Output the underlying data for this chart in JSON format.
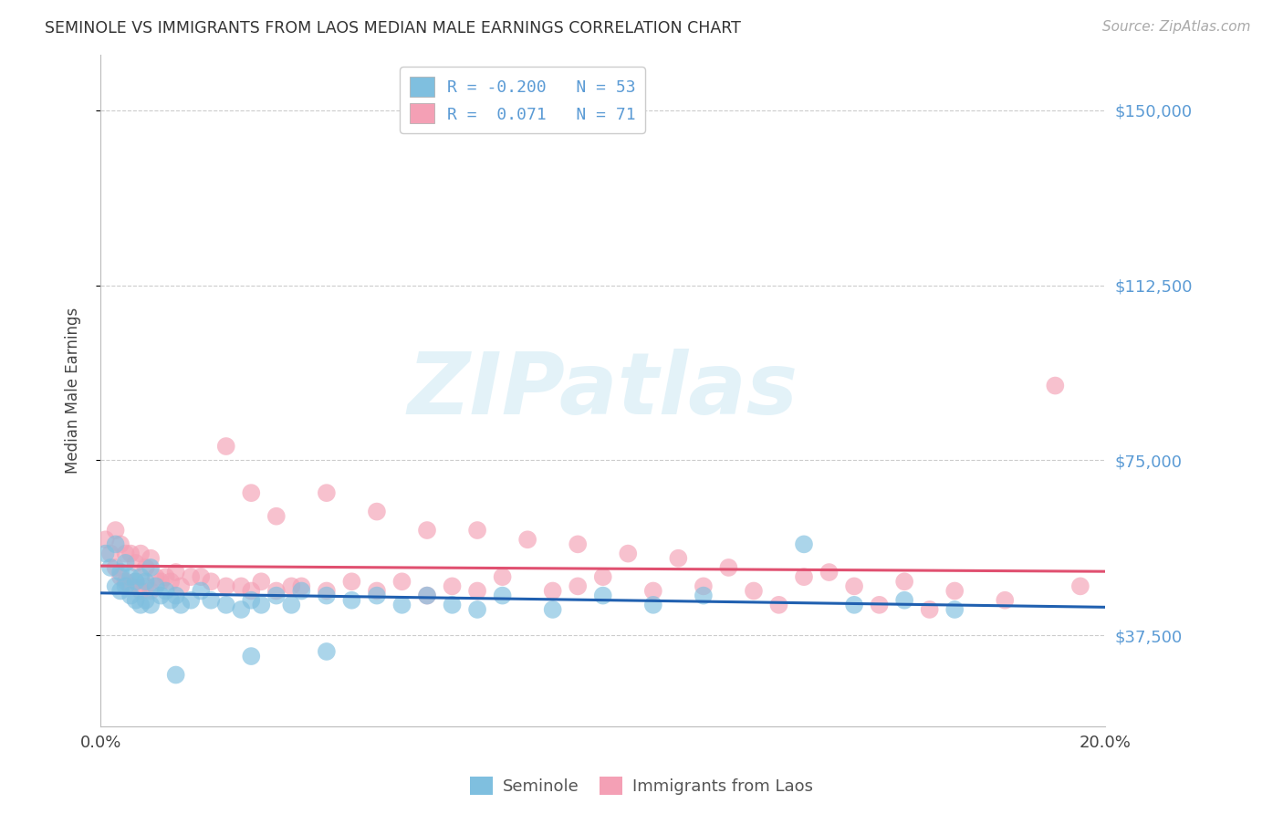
{
  "title": "SEMINOLE VS IMMIGRANTS FROM LAOS MEDIAN MALE EARNINGS CORRELATION CHART",
  "source": "Source: ZipAtlas.com",
  "ylabel": "Median Male Earnings",
  "xlim": [
    0.0,
    0.2
  ],
  "ylim": [
    18000,
    162000
  ],
  "yticks": [
    37500,
    75000,
    112500,
    150000
  ],
  "ytick_labels": [
    "$37,500",
    "$75,000",
    "$112,500",
    "$150,000"
  ],
  "xticks": [
    0.0,
    0.05,
    0.1,
    0.15,
    0.2
  ],
  "xtick_labels": [
    "0.0%",
    "",
    "",
    "",
    "20.0%"
  ],
  "blue_R": -0.2,
  "blue_N": 53,
  "pink_R": 0.071,
  "pink_N": 71,
  "blue_color": "#7fbfdf",
  "pink_color": "#f4a0b5",
  "blue_line_color": "#2060b0",
  "pink_line_color": "#e05070",
  "background_color": "#ffffff",
  "grid_color": "#cccccc",
  "watermark": "ZIPatlas",
  "seminole_x": [
    0.001,
    0.002,
    0.003,
    0.003,
    0.004,
    0.004,
    0.005,
    0.005,
    0.006,
    0.006,
    0.007,
    0.007,
    0.008,
    0.008,
    0.009,
    0.009,
    0.01,
    0.01,
    0.011,
    0.012,
    0.013,
    0.014,
    0.015,
    0.016,
    0.018,
    0.02,
    0.022,
    0.025,
    0.028,
    0.03,
    0.032,
    0.035,
    0.038,
    0.04,
    0.045,
    0.05,
    0.055,
    0.06,
    0.065,
    0.07,
    0.075,
    0.08,
    0.09,
    0.1,
    0.11,
    0.12,
    0.14,
    0.15,
    0.16,
    0.17,
    0.045,
    0.03,
    0.015
  ],
  "seminole_y": [
    55000,
    52000,
    57000,
    48000,
    51000,
    47000,
    53000,
    48000,
    50000,
    46000,
    49000,
    45000,
    50000,
    44000,
    49000,
    45000,
    52000,
    44000,
    48000,
    46000,
    47000,
    45000,
    46000,
    44000,
    45000,
    47000,
    45000,
    44000,
    43000,
    45000,
    44000,
    46000,
    44000,
    47000,
    46000,
    45000,
    46000,
    44000,
    46000,
    44000,
    43000,
    46000,
    43000,
    46000,
    44000,
    46000,
    57000,
    44000,
    45000,
    43000,
    34000,
    33000,
    29000
  ],
  "laos_x": [
    0.001,
    0.002,
    0.003,
    0.003,
    0.004,
    0.004,
    0.005,
    0.005,
    0.006,
    0.006,
    0.007,
    0.007,
    0.008,
    0.008,
    0.009,
    0.009,
    0.01,
    0.01,
    0.011,
    0.012,
    0.013,
    0.014,
    0.015,
    0.016,
    0.018,
    0.02,
    0.022,
    0.025,
    0.028,
    0.03,
    0.032,
    0.035,
    0.038,
    0.04,
    0.045,
    0.05,
    0.055,
    0.06,
    0.065,
    0.07,
    0.075,
    0.08,
    0.09,
    0.095,
    0.1,
    0.11,
    0.12,
    0.13,
    0.14,
    0.15,
    0.16,
    0.17,
    0.18,
    0.19,
    0.195,
    0.025,
    0.03,
    0.035,
    0.045,
    0.055,
    0.065,
    0.075,
    0.085,
    0.095,
    0.105,
    0.115,
    0.125,
    0.135,
    0.145,
    0.155,
    0.165
  ],
  "laos_y": [
    58000,
    55000,
    60000,
    52000,
    57000,
    50000,
    55000,
    49000,
    55000,
    48000,
    53000,
    49000,
    55000,
    47000,
    52000,
    48000,
    54000,
    47000,
    50000,
    49000,
    50000,
    49000,
    51000,
    48000,
    50000,
    50000,
    49000,
    48000,
    48000,
    47000,
    49000,
    47000,
    48000,
    48000,
    47000,
    49000,
    47000,
    49000,
    46000,
    48000,
    47000,
    50000,
    47000,
    48000,
    50000,
    47000,
    48000,
    47000,
    50000,
    48000,
    49000,
    47000,
    45000,
    91000,
    48000,
    78000,
    68000,
    63000,
    68000,
    64000,
    60000,
    60000,
    58000,
    57000,
    55000,
    54000,
    52000,
    44000,
    51000,
    44000,
    43000
  ]
}
